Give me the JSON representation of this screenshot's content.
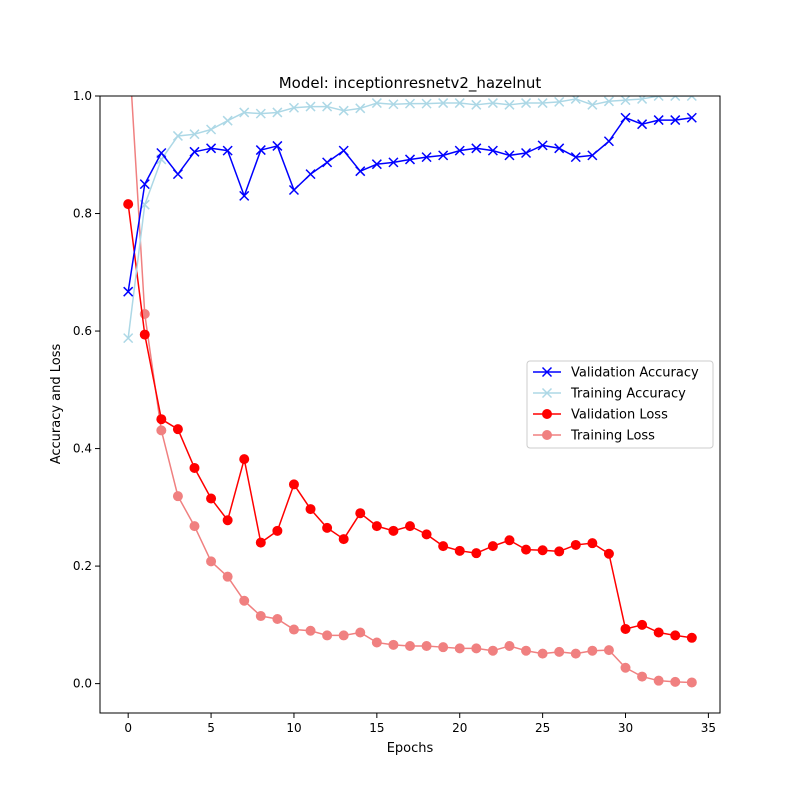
{
  "chart_data": {
    "type": "line",
    "title": "Model: inceptionresnetv2_hazelnut",
    "xlabel": "Epochs",
    "ylabel": "Accuracy and Loss",
    "xlim": [
      -1.7,
      35.7
    ],
    "ylim": [
      -0.05,
      1.0
    ],
    "xticks": [
      0,
      5,
      10,
      15,
      20,
      25,
      30,
      35
    ],
    "yticks": [
      0.0,
      0.2,
      0.4,
      0.6,
      0.8,
      1.0
    ],
    "xtick_labels": [
      "0",
      "5",
      "10",
      "15",
      "20",
      "25",
      "30",
      "35"
    ],
    "ytick_labels": [
      "0.0",
      "0.2",
      "0.4",
      "0.6",
      "0.8",
      "1.0"
    ],
    "grid": false,
    "legend_position": "center-right",
    "x": [
      0,
      1,
      2,
      3,
      4,
      5,
      6,
      7,
      8,
      9,
      10,
      11,
      12,
      13,
      14,
      15,
      16,
      17,
      18,
      19,
      20,
      21,
      22,
      23,
      24,
      25,
      26,
      27,
      28,
      29,
      30,
      31,
      32,
      33,
      34
    ],
    "series": [
      {
        "name": "Validation Accuracy",
        "color": "#0000ff",
        "marker": "x",
        "values": [
          0.667,
          0.85,
          0.903,
          0.867,
          0.905,
          0.911,
          0.907,
          0.83,
          0.908,
          0.915,
          0.84,
          0.867,
          0.887,
          0.907,
          0.872,
          0.884,
          0.887,
          0.892,
          0.896,
          0.899,
          0.907,
          0.911,
          0.907,
          0.899,
          0.903,
          0.916,
          0.911,
          0.896,
          0.899,
          0.923,
          0.963,
          0.952,
          0.959,
          0.959,
          0.963
        ]
      },
      {
        "name": "Training Accuracy",
        "color": "#add8e6",
        "marker": "x",
        "values": [
          0.588,
          0.815,
          0.892,
          0.932,
          0.935,
          0.943,
          0.958,
          0.972,
          0.97,
          0.972,
          0.98,
          0.982,
          0.982,
          0.975,
          0.979,
          0.988,
          0.986,
          0.987,
          0.987,
          0.988,
          0.988,
          0.985,
          0.988,
          0.985,
          0.988,
          0.988,
          0.99,
          0.995,
          0.985,
          0.991,
          0.993,
          0.995,
          1.0,
          1.0,
          1.0
        ]
      },
      {
        "name": "Validation Loss",
        "color": "#ff0000",
        "marker": "o",
        "values": [
          0.816,
          0.594,
          0.45,
          0.433,
          0.367,
          0.315,
          0.278,
          0.382,
          0.24,
          0.26,
          0.339,
          0.297,
          0.265,
          0.246,
          0.29,
          0.268,
          0.26,
          0.268,
          0.254,
          0.234,
          0.226,
          0.222,
          0.234,
          0.244,
          0.228,
          0.227,
          0.225,
          0.236,
          0.239,
          0.221,
          0.093,
          0.1,
          0.087,
          0.082,
          0.078
        ]
      },
      {
        "name": "Training Loss",
        "color": "#f08080",
        "marker": "o",
        "values": [
          1.1,
          0.629,
          0.431,
          0.319,
          0.268,
          0.208,
          0.182,
          0.141,
          0.115,
          0.11,
          0.092,
          0.09,
          0.082,
          0.082,
          0.087,
          0.07,
          0.066,
          0.064,
          0.064,
          0.062,
          0.06,
          0.06,
          0.056,
          0.064,
          0.056,
          0.051,
          0.054,
          0.051,
          0.056,
          0.057,
          0.027,
          0.012,
          0.005,
          0.003,
          0.002
        ]
      }
    ]
  }
}
